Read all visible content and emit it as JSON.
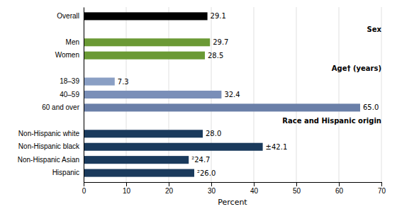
{
  "chart_data": {
    "type": "bar",
    "orientation": "horizontal",
    "categories": [
      "Overall",
      null,
      "Men",
      "Women",
      null,
      "18–39",
      "40–59",
      "60 and over",
      null,
      "Non-Hispanic white",
      "Non-Hispanic black",
      "Non-Hispanic Asian",
      "Hispanic"
    ],
    "values": [
      29.1,
      null,
      29.7,
      28.5,
      null,
      7.3,
      32.4,
      65.0,
      null,
      28.0,
      42.1,
      24.7,
      26.0
    ],
    "value_labels": [
      "29.1",
      null,
      "29.7",
      "28.5",
      null,
      "7.3",
      "32.4",
      "65.0",
      null,
      "28.0",
      "±42.1",
      "²24.7",
      "²26.0"
    ],
    "colors": [
      "#000000",
      null,
      "#6b9a35",
      "#6b9a35",
      null,
      "#8a9fc4",
      "#7a8fb8",
      "#6a7fa8",
      null,
      "#1a3a5c",
      "#1a3a5c",
      "#1a3a5c",
      "#1a3a5c"
    ],
    "annotations": [
      {
        "text": "Sex",
        "index": 1
      },
      {
        "text": "Age† (years)",
        "index": 4
      },
      {
        "text": "Race and Hispanic origin",
        "index": 8
      }
    ],
    "data_labels": true,
    "xlabel": "Percent",
    "xlim": [
      0,
      70
    ],
    "xticks": [
      0,
      10,
      20,
      30,
      40,
      50,
      60,
      70
    ],
    "grid": true
  }
}
